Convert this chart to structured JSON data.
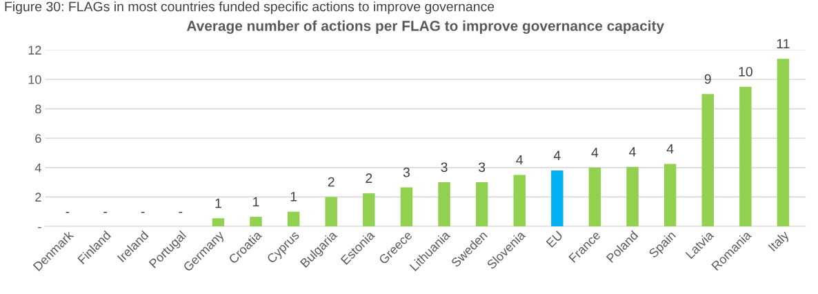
{
  "chart_data": {
    "type": "bar",
    "title": "Average number of actions per FLAG to improve governance capacity",
    "annotations": [
      "Figure 30: FLAGs in most countries funded specific actions to improve governance"
    ],
    "categories": [
      "Denmark",
      "Finland",
      "Ireland",
      "Portugal",
      "Germany",
      "Croatia",
      "Cyprus",
      "Bulgaria",
      "Estonia",
      "Greece",
      "Lithuania",
      "Sweden",
      "Slovenia",
      "EU",
      "France",
      "Poland",
      "Spain",
      "Latvia",
      "Romania",
      "Italy"
    ],
    "values": [
      0,
      0,
      0,
      0,
      0.55,
      0.65,
      1,
      2,
      2.25,
      2.65,
      3,
      3,
      3.5,
      3.8,
      4,
      4.05,
      4.25,
      9,
      9.5,
      11.4
    ],
    "value_labels": [
      "-",
      "-",
      "-",
      "-",
      "1",
      "1",
      "1",
      "2",
      "2",
      "3",
      "3",
      "3",
      "4",
      "4",
      "4",
      "4",
      "4",
      "9",
      "10",
      "11"
    ],
    "colors": [
      "#92d050",
      "#92d050",
      "#92d050",
      "#92d050",
      "#92d050",
      "#92d050",
      "#92d050",
      "#92d050",
      "#92d050",
      "#92d050",
      "#92d050",
      "#92d050",
      "#92d050",
      "#00b0f0",
      "#92d050",
      "#92d050",
      "#92d050",
      "#92d050",
      "#92d050",
      "#92d050"
    ],
    "ylim": [
      0,
      12
    ],
    "yticks": [
      {
        "value": 0,
        "label": "-"
      },
      2,
      4,
      6,
      8,
      10,
      12
    ],
    "grid": "y",
    "legend": false
  }
}
